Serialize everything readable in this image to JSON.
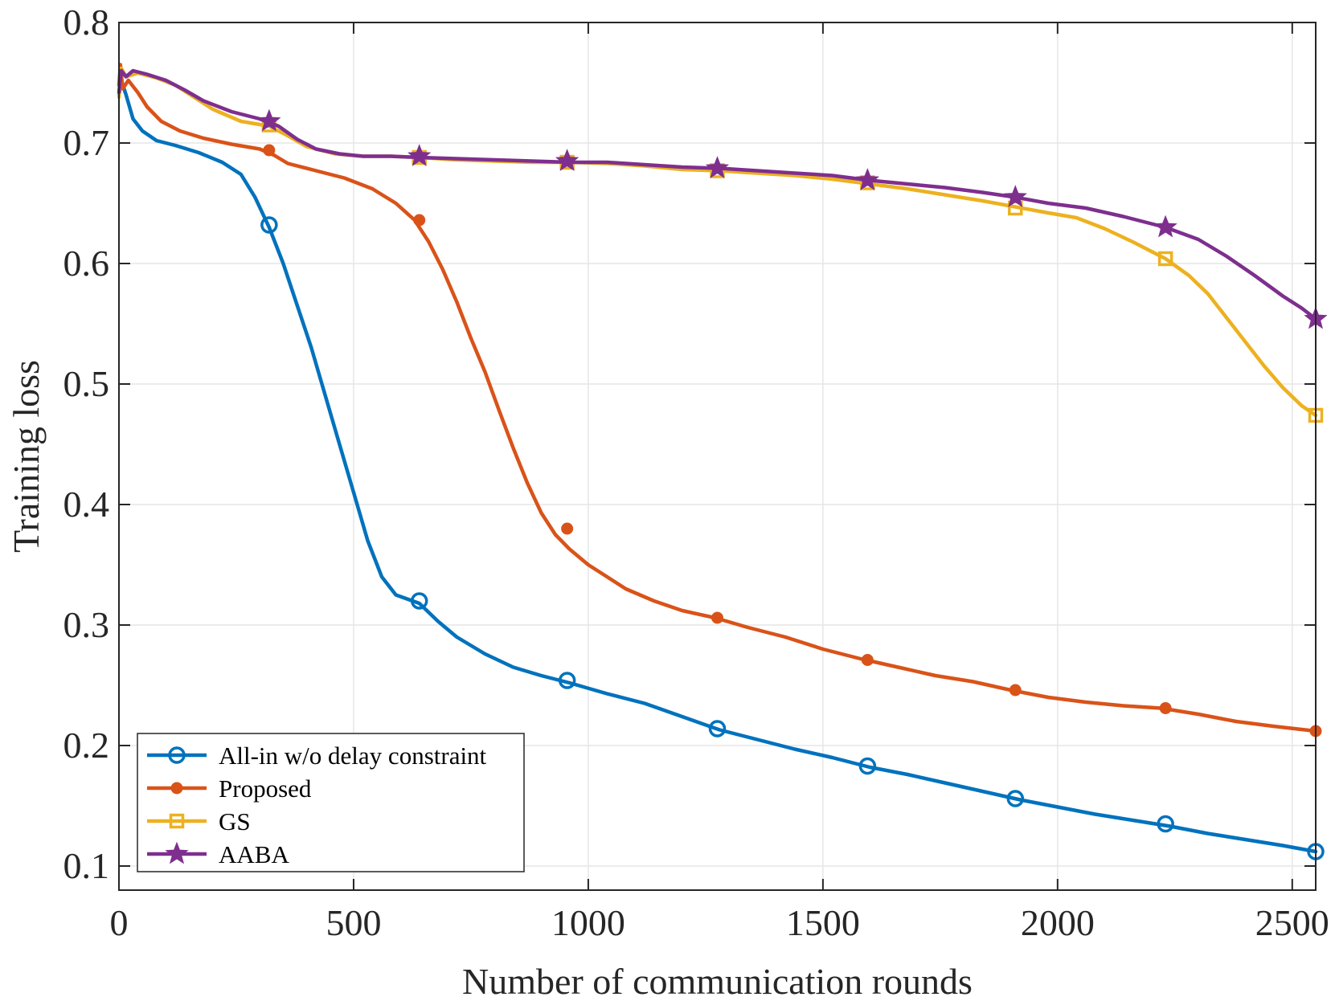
{
  "chart_data": {
    "type": "line",
    "title": "",
    "xlabel": "Number of communication rounds",
    "ylabel": "Training loss",
    "xlim": [
      0,
      2550
    ],
    "ylim": [
      0.08,
      0.8
    ],
    "xticks": [
      0,
      500,
      1000,
      1500,
      2000,
      2500
    ],
    "xtick_labels": [
      "0",
      "500",
      "1000",
      "1500",
      "2000",
      "2500"
    ],
    "yticks": [
      0.1,
      0.2,
      0.3,
      0.4,
      0.5,
      0.6,
      0.7,
      0.8
    ],
    "ytick_labels": [
      "0.1",
      "0.2",
      "0.3",
      "0.4",
      "0.5",
      "0.6",
      "0.7",
      "0.8"
    ],
    "grid": true,
    "legend_position": "bottom-left",
    "series": [
      {
        "name": "All-in w/o delay constraint",
        "color": "#0072BD",
        "marker": "circle",
        "points": [
          [
            0,
            0.74
          ],
          [
            5,
            0.752
          ],
          [
            15,
            0.74
          ],
          [
            30,
            0.72
          ],
          [
            50,
            0.71
          ],
          [
            80,
            0.702
          ],
          [
            120,
            0.698
          ],
          [
            170,
            0.692
          ],
          [
            220,
            0.684
          ],
          [
            260,
            0.674
          ],
          [
            290,
            0.655
          ],
          [
            320,
            0.63
          ],
          [
            350,
            0.6
          ],
          [
            380,
            0.565
          ],
          [
            410,
            0.53
          ],
          [
            440,
            0.49
          ],
          [
            470,
            0.45
          ],
          [
            500,
            0.41
          ],
          [
            530,
            0.37
          ],
          [
            560,
            0.34
          ],
          [
            590,
            0.325
          ],
          [
            640,
            0.318
          ],
          [
            680,
            0.303
          ],
          [
            720,
            0.29
          ],
          [
            780,
            0.276
          ],
          [
            840,
            0.265
          ],
          [
            900,
            0.258
          ],
          [
            960,
            0.252
          ],
          [
            1040,
            0.243
          ],
          [
            1120,
            0.235
          ],
          [
            1200,
            0.224
          ],
          [
            1280,
            0.213
          ],
          [
            1360,
            0.205
          ],
          [
            1440,
            0.197
          ],
          [
            1520,
            0.19
          ],
          [
            1600,
            0.182
          ],
          [
            1680,
            0.176
          ],
          [
            1760,
            0.169
          ],
          [
            1840,
            0.162
          ],
          [
            1920,
            0.155
          ],
          [
            2000,
            0.149
          ],
          [
            2080,
            0.143
          ],
          [
            2160,
            0.138
          ],
          [
            2240,
            0.133
          ],
          [
            2320,
            0.127
          ],
          [
            2400,
            0.122
          ],
          [
            2480,
            0.117
          ],
          [
            2550,
            0.112
          ]
        ],
        "markers": [
          [
            320,
            0.632
          ],
          [
            640,
            0.32
          ],
          [
            955,
            0.254
          ],
          [
            1275,
            0.214
          ],
          [
            1595,
            0.183
          ],
          [
            1910,
            0.156
          ],
          [
            2230,
            0.135
          ],
          [
            2550,
            0.112
          ]
        ]
      },
      {
        "name": "Proposed",
        "color": "#D95319",
        "marker": "filled-circle",
        "points": [
          [
            0,
            0.748
          ],
          [
            3,
            0.765
          ],
          [
            8,
            0.745
          ],
          [
            20,
            0.752
          ],
          [
            40,
            0.742
          ],
          [
            60,
            0.73
          ],
          [
            90,
            0.718
          ],
          [
            130,
            0.71
          ],
          [
            180,
            0.704
          ],
          [
            240,
            0.699
          ],
          [
            300,
            0.695
          ],
          [
            330,
            0.69
          ],
          [
            360,
            0.683
          ],
          [
            420,
            0.677
          ],
          [
            480,
            0.671
          ],
          [
            540,
            0.662
          ],
          [
            590,
            0.65
          ],
          [
            630,
            0.636
          ],
          [
            660,
            0.618
          ],
          [
            690,
            0.595
          ],
          [
            720,
            0.568
          ],
          [
            750,
            0.538
          ],
          [
            780,
            0.51
          ],
          [
            810,
            0.478
          ],
          [
            840,
            0.447
          ],
          [
            870,
            0.418
          ],
          [
            900,
            0.393
          ],
          [
            930,
            0.375
          ],
          [
            960,
            0.363
          ],
          [
            1000,
            0.35
          ],
          [
            1040,
            0.34
          ],
          [
            1080,
            0.33
          ],
          [
            1140,
            0.32
          ],
          [
            1200,
            0.312
          ],
          [
            1270,
            0.306
          ],
          [
            1340,
            0.298
          ],
          [
            1420,
            0.29
          ],
          [
            1500,
            0.28
          ],
          [
            1580,
            0.272
          ],
          [
            1660,
            0.265
          ],
          [
            1740,
            0.258
          ],
          [
            1820,
            0.253
          ],
          [
            1900,
            0.246
          ],
          [
            1980,
            0.24
          ],
          [
            2060,
            0.236
          ],
          [
            2140,
            0.233
          ],
          [
            2220,
            0.231
          ],
          [
            2300,
            0.226
          ],
          [
            2380,
            0.22
          ],
          [
            2460,
            0.216
          ],
          [
            2550,
            0.212
          ]
        ],
        "markers": [
          [
            320,
            0.694
          ],
          [
            640,
            0.636
          ],
          [
            955,
            0.38
          ],
          [
            1275,
            0.306
          ],
          [
            1595,
            0.271
          ],
          [
            1910,
            0.246
          ],
          [
            2230,
            0.231
          ],
          [
            2550,
            0.212
          ]
        ]
      },
      {
        "name": "GS",
        "color": "#EDB120",
        "marker": "square",
        "points": [
          [
            0,
            0.738
          ],
          [
            5,
            0.762
          ],
          [
            15,
            0.755
          ],
          [
            40,
            0.758
          ],
          [
            80,
            0.754
          ],
          [
            120,
            0.748
          ],
          [
            160,
            0.738
          ],
          [
            200,
            0.728
          ],
          [
            260,
            0.718
          ],
          [
            320,
            0.714
          ],
          [
            360,
            0.706
          ],
          [
            400,
            0.697
          ],
          [
            460,
            0.691
          ],
          [
            520,
            0.689
          ],
          [
            580,
            0.689
          ],
          [
            640,
            0.688
          ],
          [
            720,
            0.686
          ],
          [
            800,
            0.685
          ],
          [
            880,
            0.684
          ],
          [
            960,
            0.684
          ],
          [
            1040,
            0.683
          ],
          [
            1120,
            0.681
          ],
          [
            1200,
            0.678
          ],
          [
            1280,
            0.677
          ],
          [
            1360,
            0.675
          ],
          [
            1440,
            0.673
          ],
          [
            1520,
            0.67
          ],
          [
            1600,
            0.666
          ],
          [
            1680,
            0.662
          ],
          [
            1760,
            0.657
          ],
          [
            1840,
            0.652
          ],
          [
            1910,
            0.647
          ],
          [
            1980,
            0.642
          ],
          [
            2040,
            0.638
          ],
          [
            2100,
            0.629
          ],
          [
            2160,
            0.618
          ],
          [
            2230,
            0.604
          ],
          [
            2280,
            0.59
          ],
          [
            2320,
            0.575
          ],
          [
            2360,
            0.555
          ],
          [
            2400,
            0.535
          ],
          [
            2440,
            0.515
          ],
          [
            2480,
            0.497
          ],
          [
            2520,
            0.482
          ],
          [
            2550,
            0.474
          ]
        ],
        "markers": [
          [
            320,
            0.715
          ],
          [
            640,
            0.688
          ],
          [
            955,
            0.684
          ],
          [
            1275,
            0.677
          ],
          [
            1595,
            0.667
          ],
          [
            1910,
            0.646
          ],
          [
            2230,
            0.604
          ],
          [
            2550,
            0.474
          ]
        ]
      },
      {
        "name": "AABA",
        "color": "#7E2F8E",
        "marker": "star",
        "points": [
          [
            0,
            0.742
          ],
          [
            5,
            0.76
          ],
          [
            15,
            0.755
          ],
          [
            30,
            0.76
          ],
          [
            60,
            0.757
          ],
          [
            100,
            0.752
          ],
          [
            140,
            0.744
          ],
          [
            180,
            0.735
          ],
          [
            240,
            0.726
          ],
          [
            300,
            0.72
          ],
          [
            340,
            0.714
          ],
          [
            380,
            0.703
          ],
          [
            420,
            0.695
          ],
          [
            470,
            0.691
          ],
          [
            520,
            0.689
          ],
          [
            580,
            0.689
          ],
          [
            640,
            0.688
          ],
          [
            720,
            0.687
          ],
          [
            800,
            0.686
          ],
          [
            880,
            0.685
          ],
          [
            960,
            0.684
          ],
          [
            1040,
            0.684
          ],
          [
            1120,
            0.682
          ],
          [
            1200,
            0.68
          ],
          [
            1280,
            0.679
          ],
          [
            1360,
            0.677
          ],
          [
            1440,
            0.675
          ],
          [
            1520,
            0.673
          ],
          [
            1600,
            0.669
          ],
          [
            1680,
            0.666
          ],
          [
            1760,
            0.663
          ],
          [
            1840,
            0.659
          ],
          [
            1910,
            0.655
          ],
          [
            1980,
            0.65
          ],
          [
            2060,
            0.646
          ],
          [
            2140,
            0.639
          ],
          [
            2230,
            0.63
          ],
          [
            2300,
            0.62
          ],
          [
            2360,
            0.606
          ],
          [
            2420,
            0.59
          ],
          [
            2480,
            0.573
          ],
          [
            2520,
            0.563
          ],
          [
            2550,
            0.554
          ]
        ],
        "markers": [
          [
            320,
            0.718
          ],
          [
            640,
            0.689
          ],
          [
            955,
            0.685
          ],
          [
            1275,
            0.679
          ],
          [
            1595,
            0.669
          ],
          [
            1910,
            0.655
          ],
          [
            2230,
            0.63
          ],
          [
            2550,
            0.554
          ]
        ]
      }
    ]
  }
}
